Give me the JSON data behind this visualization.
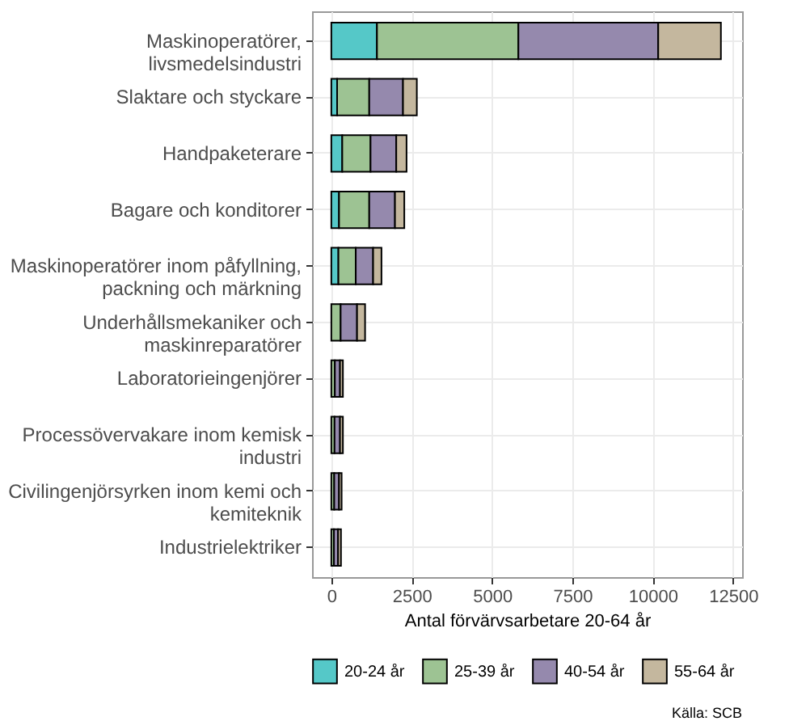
{
  "chart_data": {
    "type": "bar",
    "orientation": "horizontal",
    "stacked": true,
    "categories": [
      "Maskinoperatörer, livsmedelsindustri",
      "Slaktare och styckare",
      "Handpaketerare",
      "Bagare och konditorer",
      "Maskinoperatörer inom påfyllning, packning och märkning",
      "Underhållsmekaniker och maskinreparatörer",
      "Laboratorieingenjörer",
      "Processövervakare inom kemisk industri",
      "Civilingenjörsyrken inom kemi och kemiteknik",
      "Industrielektriker"
    ],
    "series": [
      {
        "name": "20-24 år",
        "color": "#55c8c8",
        "values": [
          1420,
          180,
          340,
          240,
          220,
          null,
          null,
          null,
          null,
          null
        ]
      },
      {
        "name": "25-39 år",
        "color": "#9dc393",
        "values": [
          4400,
          1000,
          880,
          940,
          540,
          290,
          110,
          100,
          90,
          80
        ]
      },
      {
        "name": "40-54 år",
        "color": "#9589ad",
        "values": [
          4350,
          1050,
          800,
          800,
          540,
          510,
          160,
          170,
          150,
          130
        ]
      },
      {
        "name": "55-64 år",
        "color": "#c4b79e",
        "values": [
          1950,
          430,
          320,
          290,
          260,
          250,
          90,
          90,
          80,
          90
        ]
      }
    ],
    "xlim": [
      -600,
      12780
    ],
    "xticks": [
      0,
      2500,
      5000,
      7500,
      10000,
      12500
    ],
    "xlabel": "Antal förvärvsarbetare 20-64 år",
    "grid": true,
    "legend": "bottom",
    "annotations": [
      "Källa: SCB"
    ]
  }
}
